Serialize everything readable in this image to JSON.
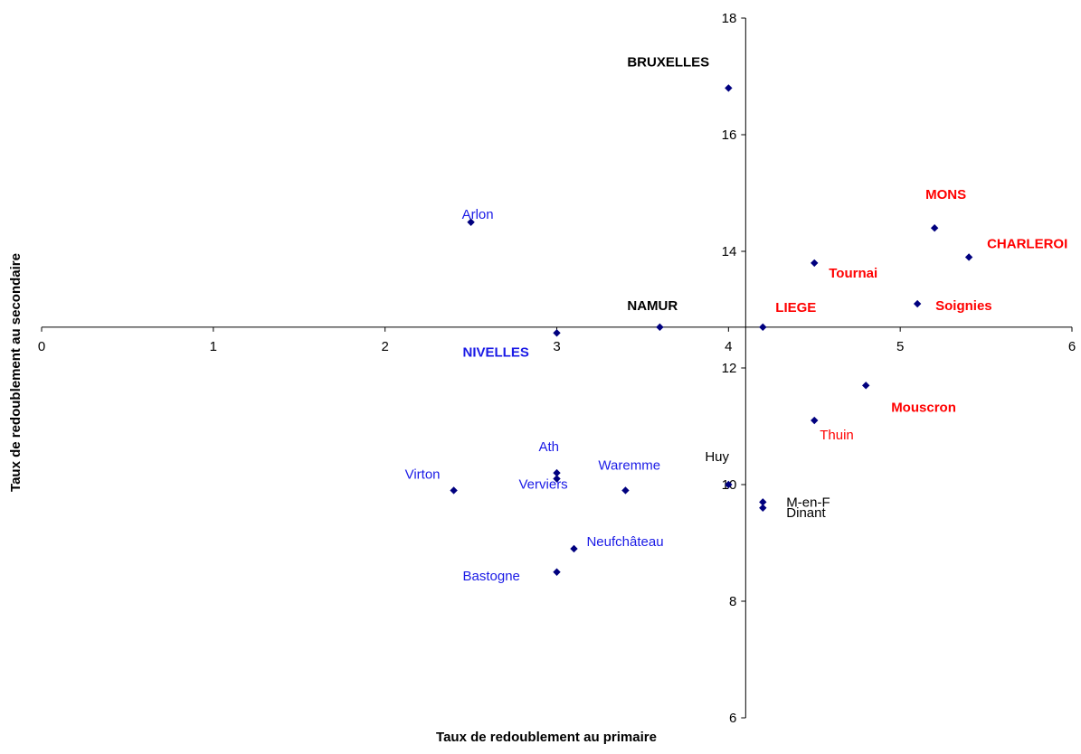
{
  "chart_data": {
    "type": "scatter",
    "title": "",
    "xlabel": "Taux de redoublement au primaire",
    "ylabel": "Taux de redoublement au secondaire",
    "xlim": [
      0,
      6
    ],
    "ylim": [
      6,
      18
    ],
    "x_ticks": [
      "0",
      "1",
      "2",
      "3",
      "4",
      "5",
      "6"
    ],
    "y_ticks": [
      "6",
      "8",
      "10",
      "12",
      "14",
      "16",
      "18"
    ],
    "x_axis_crosses_y_at": 12.7,
    "y_axis_crosses_x_at": 4.1,
    "grid": false,
    "legend": "none",
    "marker_color": "#00007F",
    "label_colors": {
      "blue": "#1A1AE6",
      "red": "#FF0000",
      "black": "#000000"
    },
    "points": [
      {
        "name": "BRUXELLES",
        "x": 4.0,
        "y": 16.8,
        "color": "black",
        "bold": true
      },
      {
        "name": "Arlon",
        "x": 2.5,
        "y": 14.5,
        "color": "blue",
        "bold": false
      },
      {
        "name": "MONS",
        "x": 5.2,
        "y": 14.4,
        "color": "red",
        "bold": true
      },
      {
        "name": "CHARLEROI",
        "x": 5.4,
        "y": 13.9,
        "color": "red",
        "bold": true
      },
      {
        "name": "Tournai",
        "x": 4.5,
        "y": 13.8,
        "color": "red",
        "bold": true
      },
      {
        "name": "Soignies",
        "x": 5.1,
        "y": 13.1,
        "color": "red",
        "bold": true
      },
      {
        "name": "LIEGE",
        "x": 4.2,
        "y": 12.7,
        "color": "red",
        "bold": true
      },
      {
        "name": "NAMUR",
        "x": 3.6,
        "y": 12.7,
        "color": "black",
        "bold": true
      },
      {
        "name": "NIVELLES",
        "x": 3.0,
        "y": 12.6,
        "color": "blue",
        "bold": true
      },
      {
        "name": "Mouscron",
        "x": 4.8,
        "y": 11.7,
        "color": "red",
        "bold": true
      },
      {
        "name": "Thuin",
        "x": 4.5,
        "y": 11.1,
        "color": "red",
        "bold": false
      },
      {
        "name": "Ath",
        "x": 3.0,
        "y": 10.2,
        "color": "blue",
        "bold": false
      },
      {
        "name": "Verviers",
        "x": 3.0,
        "y": 10.1,
        "color": "blue",
        "bold": false
      },
      {
        "name": "Huy",
        "x": 4.0,
        "y": 10.0,
        "color": "black",
        "bold": false
      },
      {
        "name": "Virton",
        "x": 2.4,
        "y": 9.9,
        "color": "blue",
        "bold": false
      },
      {
        "name": "Waremme",
        "x": 3.4,
        "y": 9.9,
        "color": "blue",
        "bold": false
      },
      {
        "name": "M-en-F",
        "x": 4.2,
        "y": 9.7,
        "color": "black",
        "bold": false
      },
      {
        "name": "Dinant",
        "x": 4.2,
        "y": 9.6,
        "color": "black",
        "bold": false
      },
      {
        "name": "Neufchâteau",
        "x": 3.1,
        "y": 8.9,
        "color": "blue",
        "bold": false
      },
      {
        "name": "Bastogne",
        "x": 3.0,
        "y": 8.5,
        "color": "blue",
        "bold": false
      }
    ]
  }
}
